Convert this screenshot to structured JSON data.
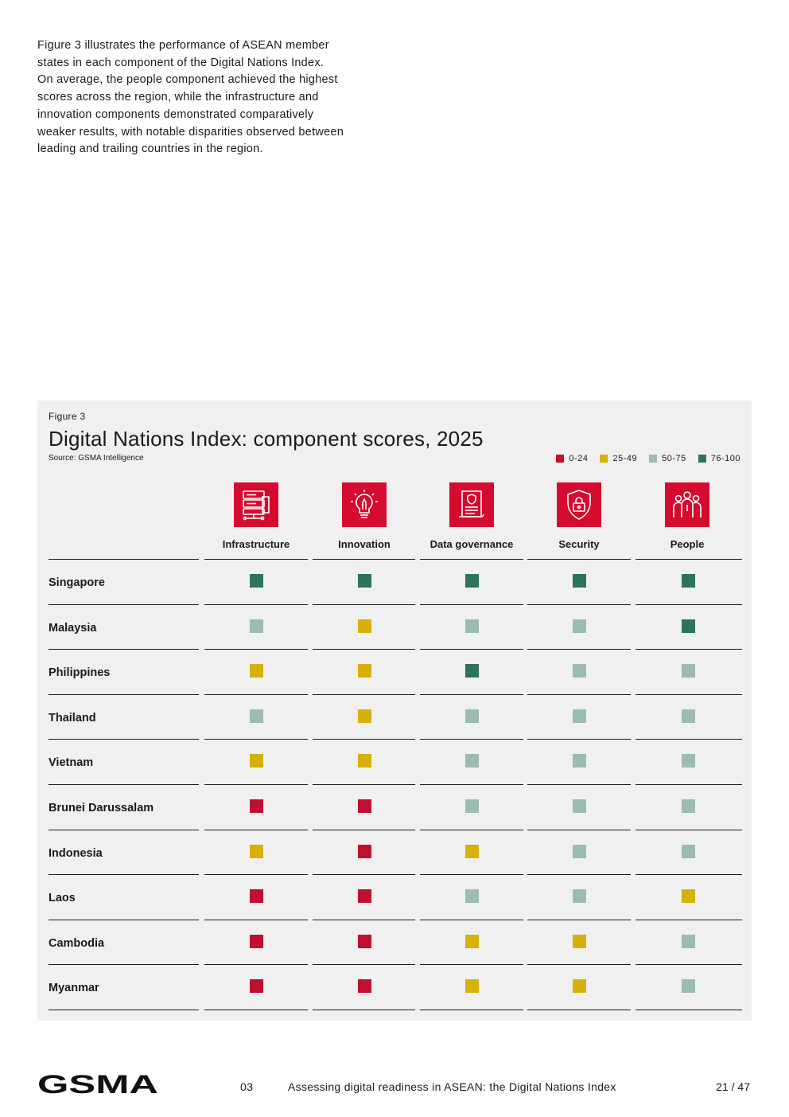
{
  "intro": {
    "lines": [
      "Figure 3 illustrates the performance of ASEAN member",
      "states in each component of the Digital Nations Index.",
      "On average, the people component achieved the highest",
      "scores across the region, while the infrastructure and",
      "innovation components demonstrated comparatively",
      "weaker results, with notable disparities observed between",
      "leading and trailing countries in the region."
    ]
  },
  "figure": {
    "label": "Figure 3",
    "title": "Digital Nations Index: component scores, 2025",
    "source": "Source: GSMA Intelligence"
  },
  "legend": [
    {
      "label": "0-24",
      "color": "#c0102f"
    },
    {
      "label": "25-49",
      "color": "#d6b10a"
    },
    {
      "label": "50-75",
      "color": "#9bbcb0"
    },
    {
      "label": "76-100",
      "color": "#2e735c"
    }
  ],
  "columns": [
    {
      "label": "Infrastructure",
      "icon": "server-network-icon"
    },
    {
      "label": "Innovation",
      "icon": "lightbulb-pencil-icon"
    },
    {
      "label": "Data governance",
      "icon": "document-shield-icon"
    },
    {
      "label": "Security",
      "icon": "shield-lock-icon"
    },
    {
      "label": "People",
      "icon": "people-group-icon"
    }
  ],
  "rows": [
    {
      "country": "Singapore",
      "bands": [
        "76-100",
        "76-100",
        "76-100",
        "76-100",
        "76-100"
      ]
    },
    {
      "country": "Malaysia",
      "bands": [
        "50-75",
        "25-49",
        "50-75",
        "50-75",
        "76-100"
      ]
    },
    {
      "country": "Philippines",
      "bands": [
        "25-49",
        "25-49",
        "76-100",
        "50-75",
        "50-75"
      ]
    },
    {
      "country": "Thailand",
      "bands": [
        "50-75",
        "25-49",
        "50-75",
        "50-75",
        "50-75"
      ]
    },
    {
      "country": "Vietnam",
      "bands": [
        "25-49",
        "25-49",
        "50-75",
        "50-75",
        "50-75"
      ]
    },
    {
      "country": "Brunei Darussalam",
      "bands": [
        "0-24",
        "0-24",
        "50-75",
        "50-75",
        "50-75"
      ]
    },
    {
      "country": "Indonesia",
      "bands": [
        "25-49",
        "0-24",
        "25-49",
        "50-75",
        "50-75"
      ]
    },
    {
      "country": "Laos",
      "bands": [
        "0-24",
        "0-24",
        "50-75",
        "50-75",
        "25-49"
      ]
    },
    {
      "country": "Cambodia",
      "bands": [
        "0-24",
        "0-24",
        "25-49",
        "25-49",
        "50-75"
      ]
    },
    {
      "country": "Myanmar",
      "bands": [
        "0-24",
        "0-24",
        "25-49",
        "25-49",
        "50-75"
      ]
    }
  ],
  "footer": {
    "logo": "GSMA",
    "section": "03",
    "title": "Assessing digital readiness in ASEAN: the Digital Nations Index",
    "page": "21 / 47"
  }
}
